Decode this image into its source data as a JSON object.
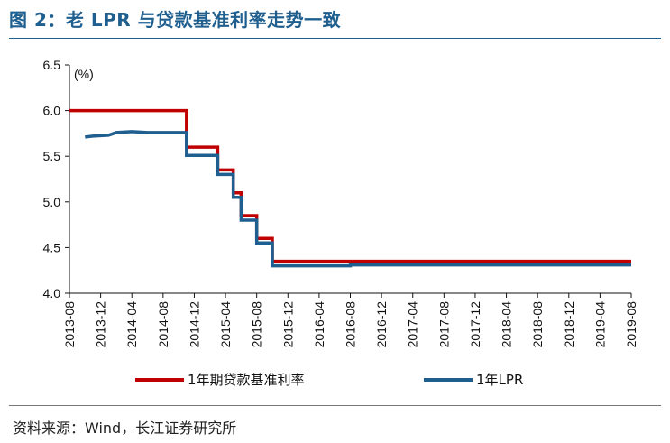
{
  "header": {
    "title": "图 2：老 LPR 与贷款基准利率走势一致"
  },
  "footer": {
    "source": "资料来源：Wind，长江证券研究所"
  },
  "colors": {
    "title": "#1f5f8f",
    "series_old": "#c00000",
    "series_lpr": "#1f5f8f"
  },
  "chart_data": {
    "type": "line",
    "title": "",
    "unit_label": "(%)",
    "ylim": [
      4.0,
      6.5
    ],
    "yticks": [
      "4.0",
      "4.5",
      "5.0",
      "5.5",
      "6.0",
      "6.5"
    ],
    "xlim": [
      "2013-08",
      "2019-08"
    ],
    "xticks": [
      "2013-08",
      "2013-12",
      "2014-04",
      "2014-08",
      "2014-12",
      "2015-04",
      "2015-08",
      "2015-12",
      "2016-04",
      "2016-08",
      "2016-12",
      "2017-04",
      "2017-08",
      "2017-12",
      "2018-04",
      "2018-08",
      "2018-12",
      "2019-04",
      "2019-08"
    ],
    "legend_position": "bottom",
    "series": [
      {
        "name": "1年期贷款基准利率",
        "step": true,
        "points": [
          [
            "2013-08",
            6.0
          ],
          [
            "2014-11",
            6.0
          ],
          [
            "2014-11",
            5.6
          ],
          [
            "2015-03",
            5.6
          ],
          [
            "2015-03",
            5.35
          ],
          [
            "2015-05",
            5.35
          ],
          [
            "2015-05",
            5.1
          ],
          [
            "2015-06",
            5.1
          ],
          [
            "2015-06",
            4.85
          ],
          [
            "2015-08",
            4.85
          ],
          [
            "2015-08",
            4.6
          ],
          [
            "2015-10",
            4.6
          ],
          [
            "2015-10",
            4.35
          ],
          [
            "2019-08",
            4.35
          ]
        ]
      },
      {
        "name": "1年LPR",
        "step": true,
        "points": [
          [
            "2013-10",
            5.71
          ],
          [
            "2013-11",
            5.72
          ],
          [
            "2014-01",
            5.73
          ],
          [
            "2014-02",
            5.76
          ],
          [
            "2014-04",
            5.77
          ],
          [
            "2014-06",
            5.76
          ],
          [
            "2014-11",
            5.76
          ],
          [
            "2014-11",
            5.51
          ],
          [
            "2015-03",
            5.51
          ],
          [
            "2015-03",
            5.3
          ],
          [
            "2015-05",
            5.3
          ],
          [
            "2015-05",
            5.05
          ],
          [
            "2015-06",
            5.05
          ],
          [
            "2015-06",
            4.8
          ],
          [
            "2015-08",
            4.8
          ],
          [
            "2015-08",
            4.55
          ],
          [
            "2015-10",
            4.55
          ],
          [
            "2015-10",
            4.3
          ],
          [
            "2016-08",
            4.3
          ],
          [
            "2016-08",
            4.31
          ],
          [
            "2018-04",
            4.31
          ],
          [
            "2018-04",
            4.31
          ],
          [
            "2019-08",
            4.31
          ]
        ]
      }
    ]
  }
}
